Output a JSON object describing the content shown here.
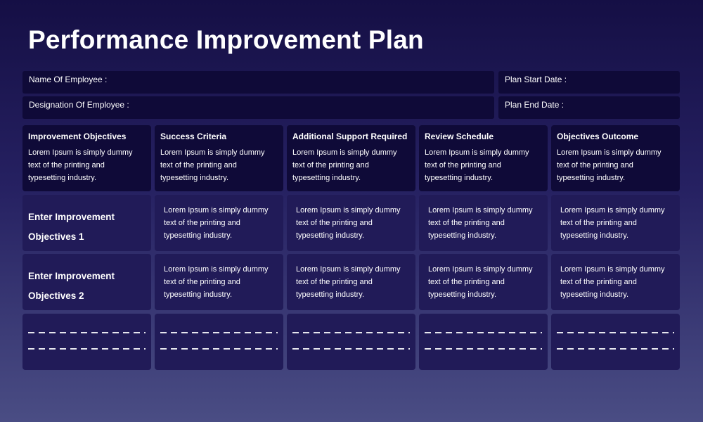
{
  "header": {
    "title": "Performance Improvement Plan"
  },
  "fields": [
    "Name Of Employee :",
    "Plan Start Date :",
    "Designation Of Employee :",
    "Plan End Date :"
  ],
  "table": {
    "headers": [
      "Improvement Objectives",
      "Success Criteria",
      "Additional Support Required",
      "Review Schedule",
      "Objectives Outcome"
    ],
    "header_texts": [
      "Lorem Ipsum is simply dummy text of the printing and typesetting industry.",
      "Lorem Ipsum is simply dummy text of the printing and typesetting industry.",
      "Lorem Ipsum is simply dummy text of the printing and typesetting industry.",
      "Lorem Ipsum is simply dummy text of the printing and typesetting industry.",
      "Lorem Ipsum is simply dummy text of the printing and typesetting industry."
    ],
    "rows": [
      [
        "Enter Improvement Objectives 1",
        "Lorem Ipsum is simply dummy text of the printing and typesetting industry.",
        "Lorem Ipsum is simply dummy text of the printing and typesetting industry.",
        "Lorem Ipsum is simply dummy text of the printing and typesetting industry.",
        "Lorem Ipsum is simply dummy text of the printing and typesetting industry."
      ],
      [
        "Enter Improvement Objectives 2",
        "Lorem Ipsum is simply dummy text of the printing and typesetting industry.",
        "Lorem Ipsum is simply dummy text of the printing and typesetting industry.",
        "Lorem Ipsum is simply dummy text of the printing and typesetting industry.",
        "Lorem Ipsum is simply dummy text of the printing and typesetting industry."
      ]
    ]
  }
}
